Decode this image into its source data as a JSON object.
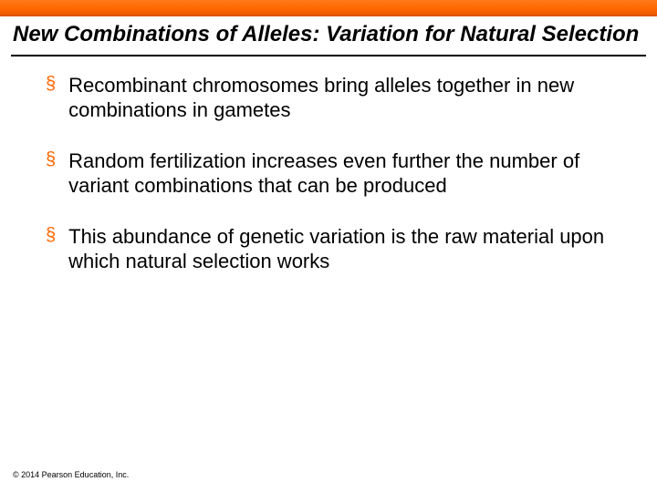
{
  "slide": {
    "title": "New Combinations of Alleles: Variation for Natural Selection",
    "bullets": [
      "Recombinant chromosomes bring alleles together in new combinations in gametes",
      "Random fertilization increases even further the number of variant combinations that can be produced",
      "This abundance of genetic variation is the raw material upon which natural selection works"
    ],
    "copyright": "© 2014 Pearson Education, Inc."
  },
  "style": {
    "accent_color": "#ff6600",
    "title_fontsize": 24,
    "body_fontsize": 22,
    "background_color": "#ffffff",
    "text_color": "#000000",
    "bullet_marker": "§"
  }
}
